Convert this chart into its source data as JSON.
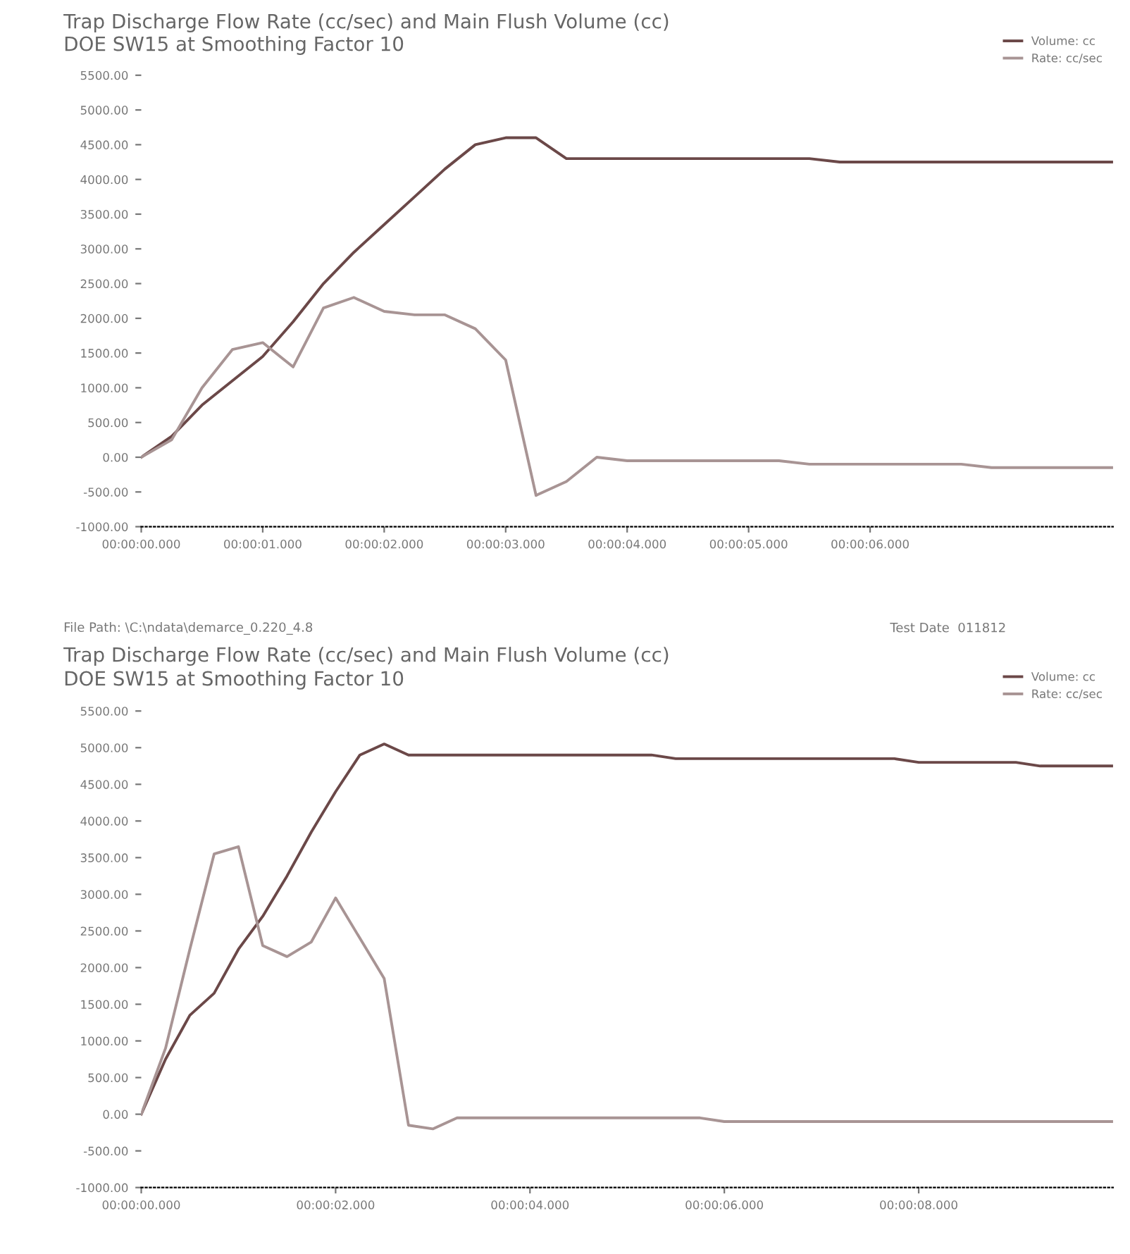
{
  "chart_data": [
    {
      "type": "line",
      "title": "Trap Discharge Flow Rate (cc/sec) and Main Flush Volume (cc)",
      "subtitle": "DOE SW15 at Smoothing Factor 10",
      "legend": "top right",
      "marker": "none",
      "line_style": "solid",
      "grid": false,
      "categories": [
        "00:00:00.000",
        null,
        null,
        null,
        "00:00:01.000",
        null,
        null,
        null,
        "00:00:02.000",
        null,
        null,
        null,
        "00:00:03.000",
        null,
        null,
        null,
        "00:00:04.000",
        null,
        null,
        null,
        "00:00:05.000",
        null,
        null,
        null,
        "00:00:06.000",
        null,
        null,
        null,
        null,
        null,
        null,
        null,
        null
      ],
      "ylim": [
        -1000,
        5500
      ],
      "yticks": [
        {
          "value": -1000,
          "label": "-1000.00"
        },
        {
          "value": -500,
          "label": "-500.00"
        },
        {
          "value": 0,
          "label": "0.00"
        },
        {
          "value": 500,
          "label": "500.00"
        },
        {
          "value": 1000,
          "label": "1000.00"
        },
        {
          "value": 1500,
          "label": "1500.00"
        },
        {
          "value": 2000,
          "label": "2000.00"
        },
        {
          "value": 2500,
          "label": "2500.00"
        },
        {
          "value": 3000,
          "label": "3000.00"
        },
        {
          "value": 3500,
          "label": "3500.00"
        },
        {
          "value": 4000,
          "label": "4000.00"
        },
        {
          "value": 4500,
          "label": "4500.00"
        },
        {
          "value": 5000,
          "label": "5000.00"
        },
        {
          "value": 5500,
          "label": "5500.00"
        }
      ],
      "series": [
        {
          "name": "Volume: cc",
          "color": "#6b4848",
          "values": [
            0,
            300,
            750,
            1100,
            1450,
            1950,
            2500,
            2950,
            3350,
            3750,
            4150,
            4500,
            4600,
            4600,
            4300,
            4300,
            4300,
            4300,
            4300,
            4300,
            4300,
            4300,
            4300,
            4250,
            4250,
            4250,
            4250,
            4250,
            4250,
            4250,
            4250,
            4250,
            4250
          ]
        },
        {
          "name": "Rate: cc/sec",
          "color": "#a89494",
          "values": [
            0,
            250,
            1000,
            1550,
            1650,
            1300,
            2150,
            2300,
            2100,
            2050,
            2050,
            1850,
            1400,
            -550,
            -350,
            0,
            -50,
            -50,
            -50,
            -50,
            -50,
            -50,
            -100,
            -100,
            -100,
            -100,
            -100,
            -100,
            -150,
            -150,
            -150,
            -150,
            -150
          ]
        }
      ]
    },
    {
      "type": "line",
      "title": "Trap Discharge Flow Rate (cc/sec) and Main Flush Volume (cc)",
      "subtitle": "DOE SW15 at Smoothing Factor 10",
      "legend": "top right",
      "marker": "none",
      "line_style": "solid",
      "grid": false,
      "annotations": [
        "File Path: \\C:\\ndata\\demarce_0.220_4.8",
        "Test Date  011812"
      ],
      "categories": [
        "00:00:00.000",
        null,
        null,
        null,
        null,
        null,
        null,
        null,
        "00:00:02.000",
        null,
        null,
        null,
        null,
        null,
        null,
        null,
        "00:00:04.000",
        null,
        null,
        null,
        null,
        null,
        null,
        null,
        "00:00:06.000",
        null,
        null,
        null,
        null,
        null,
        null,
        null,
        "00:00:08.000",
        null,
        null,
        null,
        null,
        null,
        null,
        null,
        null
      ],
      "ylim": [
        -1000,
        5500
      ],
      "yticks": [
        {
          "value": -1000,
          "label": "-1000.00"
        },
        {
          "value": -500,
          "label": "-500.00"
        },
        {
          "value": 0,
          "label": "0.00"
        },
        {
          "value": 500,
          "label": "500.00"
        },
        {
          "value": 1000,
          "label": "1000.00"
        },
        {
          "value": 1500,
          "label": "1500.00"
        },
        {
          "value": 2000,
          "label": "2000.00"
        },
        {
          "value": 2500,
          "label": "2500.00"
        },
        {
          "value": 3000,
          "label": "3000.00"
        },
        {
          "value": 3500,
          "label": "3500.00"
        },
        {
          "value": 4000,
          "label": "4000.00"
        },
        {
          "value": 4500,
          "label": "4500.00"
        },
        {
          "value": 5000,
          "label": "5000.00"
        },
        {
          "value": 5500,
          "label": "5500.00"
        }
      ],
      "series": [
        {
          "name": "Volume: cc",
          "color": "#6b4848",
          "values": [
            0,
            750,
            1350,
            1650,
            2250,
            2700,
            3250,
            3850,
            4400,
            4900,
            5050,
            4900,
            4900,
            4900,
            4900,
            4900,
            4900,
            4900,
            4900,
            4900,
            4900,
            4900,
            4850,
            4850,
            4850,
            4850,
            4850,
            4850,
            4850,
            4850,
            4850,
            4850,
            4800,
            4800,
            4800,
            4800,
            4800,
            4750,
            4750,
            4750,
            4750
          ]
        },
        {
          "name": "Rate: cc/sec",
          "color": "#a89494",
          "values": [
            0,
            900,
            2250,
            3550,
            3650,
            2300,
            2150,
            2350,
            2950,
            2400,
            1850,
            -150,
            -200,
            -50,
            -50,
            -50,
            -50,
            -50,
            -50,
            -50,
            -50,
            -50,
            -50,
            -50,
            -100,
            -100,
            -100,
            -100,
            -100,
            -100,
            -100,
            -100,
            -100,
            -100,
            -100,
            -100,
            -100,
            -100,
            -100,
            -100,
            -100
          ]
        }
      ]
    }
  ]
}
